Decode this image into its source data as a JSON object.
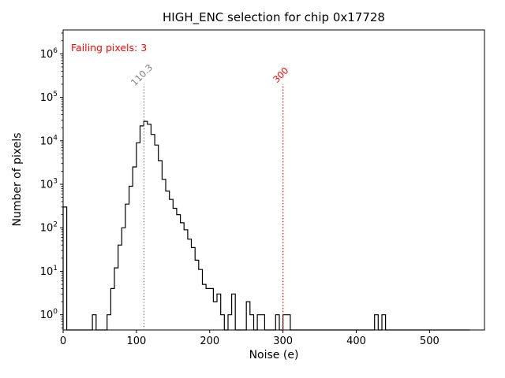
{
  "chart_data": {
    "type": "bar",
    "subtype": "step-histogram",
    "title": "HIGH_ENC selection for chip 0x17728",
    "xlabel": "Noise (e)",
    "ylabel": "Number of pixels",
    "annotation": "Failing pixels: 3",
    "annotation_color": "#ff0000",
    "xlim": [
      0,
      575
    ],
    "ylog_range": [
      -0.35,
      6.55
    ],
    "x_ticks": [
      0,
      100,
      200,
      300,
      400,
      500
    ],
    "y_ticks_exponents": [
      0,
      1,
      2,
      3,
      4,
      5,
      6
    ],
    "grid": false,
    "legend": "none",
    "bin_width": 5,
    "counts": [
      300,
      0,
      0,
      0,
      0,
      0,
      0,
      0,
      1,
      0,
      0,
      0,
      1,
      4,
      12,
      40,
      100,
      350,
      900,
      2500,
      9000,
      22000,
      28000,
      24000,
      14000,
      8000,
      3500,
      1300,
      700,
      450,
      280,
      200,
      130,
      90,
      55,
      35,
      18,
      11,
      5,
      4,
      4,
      2,
      3,
      1,
      0,
      1,
      3,
      0,
      0,
      0,
      2,
      1,
      0,
      1,
      1,
      0,
      0,
      0,
      1,
      0,
      1,
      1,
      0,
      0,
      0,
      0,
      0,
      0,
      0,
      0,
      0,
      0,
      0,
      0,
      0,
      0,
      0,
      0,
      0,
      0,
      0,
      0,
      0,
      0,
      0,
      1,
      0,
      1,
      0,
      0,
      0,
      0,
      0,
      0,
      0,
      0,
      0,
      0,
      0,
      0,
      0,
      0,
      0,
      0,
      0,
      0,
      0,
      0,
      0,
      0,
      0
    ],
    "vlines": [
      {
        "x": 110.3,
        "label": "110.3",
        "color": "#7f7f7f"
      },
      {
        "x": 300,
        "label": "300",
        "color": "#ff0000"
      }
    ],
    "colors": {
      "hist": "#000000"
    }
  }
}
